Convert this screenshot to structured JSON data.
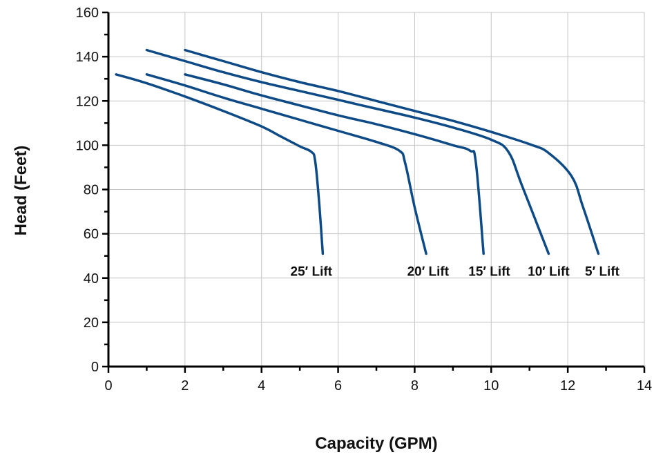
{
  "chart_data": {
    "type": "line",
    "title": "",
    "xlabel": "Capacity (GPM)",
    "ylabel": "Head (Feet)",
    "xlim": [
      0,
      14
    ],
    "ylim": [
      0,
      160
    ],
    "xticks": [
      "0",
      "2",
      "4",
      "6",
      "8",
      "10",
      "12",
      "14"
    ],
    "yticks": [
      "0",
      "20",
      "40",
      "60",
      "80",
      "100",
      "120",
      "140",
      "160"
    ],
    "grid": true,
    "line_color": "#0d4a86",
    "series": [
      {
        "name": "25′ Lift",
        "points": [
          [
            0.2,
            132
          ],
          [
            1,
            128
          ],
          [
            2,
            122
          ],
          [
            3,
            115.5
          ],
          [
            4,
            108.5
          ],
          [
            4.5,
            104
          ],
          [
            5,
            99.5
          ],
          [
            5.3,
            97
          ],
          [
            5.4,
            93
          ],
          [
            5.5,
            75
          ],
          [
            5.6,
            51
          ]
        ]
      },
      {
        "name": "20′ Lift",
        "points": [
          [
            1,
            132
          ],
          [
            2,
            127
          ],
          [
            3,
            121.5
          ],
          [
            4,
            116.5
          ],
          [
            5,
            111.5
          ],
          [
            6,
            106.5
          ],
          [
            7,
            101.5
          ],
          [
            7.6,
            97.5
          ],
          [
            7.75,
            92
          ],
          [
            8,
            72
          ],
          [
            8.3,
            51
          ]
        ]
      },
      {
        "name": "15′ Lift",
        "points": [
          [
            2,
            132
          ],
          [
            3,
            127.5
          ],
          [
            4,
            122.5
          ],
          [
            5,
            118
          ],
          [
            6,
            113.5
          ],
          [
            7,
            109.5
          ],
          [
            8,
            105
          ],
          [
            9,
            100
          ],
          [
            9.45,
            97.5
          ],
          [
            9.6,
            92
          ],
          [
            9.8,
            51
          ]
        ]
      },
      {
        "name": "10′ Lift",
        "points": [
          [
            1,
            143
          ],
          [
            2,
            138
          ],
          [
            3,
            133
          ],
          [
            4,
            128.5
          ],
          [
            5,
            124.5
          ],
          [
            6,
            120.5
          ],
          [
            7,
            116.5
          ],
          [
            8,
            112.5
          ],
          [
            9,
            108
          ],
          [
            10,
            102.5
          ],
          [
            10.45,
            97
          ],
          [
            10.8,
            82
          ],
          [
            11.5,
            51
          ]
        ]
      },
      {
        "name": "5′ Lift",
        "points": [
          [
            2,
            143
          ],
          [
            3,
            138
          ],
          [
            4,
            133
          ],
          [
            5,
            128.5
          ],
          [
            6,
            124.5
          ],
          [
            7,
            120
          ],
          [
            8,
            115.5
          ],
          [
            9,
            111
          ],
          [
            10,
            106
          ],
          [
            11,
            100.5
          ],
          [
            11.5,
            96.5
          ],
          [
            12.1,
            86
          ],
          [
            12.4,
            72
          ],
          [
            12.8,
            51
          ]
        ]
      }
    ],
    "labels": [
      {
        "text": "25′ Lift",
        "x": 5.3,
        "y": 41
      },
      {
        "text": "20′ Lift",
        "x": 8.35,
        "y": 41
      },
      {
        "text": "15′ Lift",
        "x": 9.95,
        "y": 41
      },
      {
        "text": "10′ Lift",
        "x": 11.5,
        "y": 41
      },
      {
        "text": "5′ Lift",
        "x": 12.9,
        "y": 41
      }
    ]
  }
}
